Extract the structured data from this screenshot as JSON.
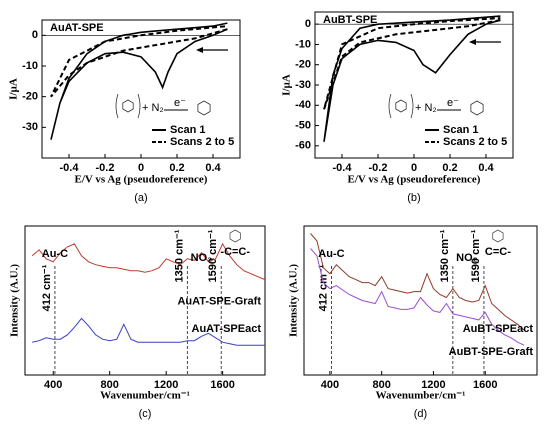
{
  "chart_data": [
    {
      "type": "line",
      "label": "(a)",
      "title": "AuAT-SPE",
      "x_label": "E/V vs Ag (pseudoreference)",
      "y_label": "I/µA",
      "xlim": [
        -0.55,
        0.55
      ],
      "xticks": [
        -0.4,
        -0.2,
        0,
        0.2,
        0.4
      ],
      "ylim": [
        -40,
        5
      ],
      "yticks": [
        0,
        -10,
        -20,
        -30
      ],
      "legend": "lower right",
      "annotations": [
        "+ N₂",
        "e⁻"
      ],
      "series": [
        {
          "name": "Scan 1",
          "color": "#000000",
          "dash": false,
          "x": [
            0.48,
            0.4,
            0.3,
            0.2,
            0.15,
            0.12,
            0.08,
            0.0,
            -0.1,
            -0.2,
            -0.3,
            -0.4,
            -0.45,
            -0.5,
            -0.45,
            -0.4,
            -0.3,
            -0.2,
            -0.1,
            0,
            0.1,
            0.2,
            0.3,
            0.4,
            0.48
          ],
          "values": [
            2,
            0,
            -2,
            -6,
            -12,
            -17,
            -12,
            -7,
            -5.5,
            -6,
            -9,
            -15,
            -22,
            -34,
            -22,
            -14,
            -6,
            -2,
            0,
            1,
            1.5,
            2,
            2.5,
            3,
            4
          ]
        },
        {
          "name": "Scans 2 to 5",
          "color": "#000000",
          "dash": true,
          "x": [
            0.48,
            0.3,
            0.1,
            -0.1,
            -0.3,
            -0.4,
            -0.5,
            -0.4,
            -0.2,
            0,
            0.2,
            0.48
          ],
          "values": [
            2,
            -1,
            -3,
            -5,
            -9,
            -13,
            -20,
            -8,
            -2,
            0,
            1.5,
            3
          ]
        }
      ]
    },
    {
      "type": "line",
      "label": "(b)",
      "title": "AuBT-SPE",
      "x_label": "E/V vs Ag (pseudoreference)",
      "y_label": "I/µA",
      "xlim": [
        -0.55,
        0.55
      ],
      "xticks": [
        -0.4,
        -0.2,
        0,
        0.2,
        0.4
      ],
      "ylim": [
        -66,
        6
      ],
      "yticks": [
        0,
        -10,
        -20,
        -30,
        -40,
        -50,
        -60
      ],
      "legend": "lower right",
      "annotations": [
        "+ N₂",
        "e⁻"
      ],
      "series": [
        {
          "name": "Scan 1",
          "color": "#000000",
          "dash": false,
          "x": [
            0.48,
            0.4,
            0.3,
            0.2,
            0.12,
            0.05,
            0,
            -0.1,
            -0.2,
            -0.3,
            -0.4,
            -0.45,
            -0.5,
            -0.45,
            -0.4,
            -0.3,
            -0.2,
            0,
            0.2,
            0.48
          ],
          "values": [
            2,
            0,
            -5,
            -15,
            -24,
            -20,
            -13,
            -9,
            -8,
            -10,
            -17,
            -30,
            -58,
            -25,
            -12,
            -2,
            0,
            1,
            2,
            4
          ]
        },
        {
          "name": "Scans 2 to 5",
          "color": "#000000",
          "dash": true,
          "x": [
            0.48,
            0.3,
            0.1,
            -0.1,
            -0.3,
            -0.4,
            -0.5,
            -0.4,
            -0.2,
            0,
            0.2,
            0.48
          ],
          "values": [
            2,
            -1,
            -3,
            -5,
            -9,
            -16,
            -42,
            -10,
            -2,
            0,
            1.5,
            3
          ]
        }
      ]
    },
    {
      "type": "raman",
      "label": "(c)",
      "x_label": "Wavenumber/cm⁻¹",
      "y_label": "Intensity (A.U.)",
      "xlim": [
        200,
        1900
      ],
      "xticks": [
        400,
        800,
        1200,
        1600
      ],
      "ylim": [
        0,
        100
      ],
      "markers": [
        412,
        1350,
        1590
      ],
      "marker_labels": [
        "412 cm⁻¹",
        "1350 cm⁻¹",
        "1590 cm⁻¹"
      ],
      "annotations": [
        "Au-C",
        "NO₂",
        "-C=C-"
      ],
      "x": [
        250,
        300,
        350,
        400,
        450,
        500,
        550,
        600,
        650,
        700,
        750,
        800,
        850,
        900,
        950,
        1000,
        1050,
        1100,
        1150,
        1200,
        1250,
        1300,
        1350,
        1400,
        1450,
        1500,
        1550,
        1600,
        1650,
        1700,
        1750,
        1800,
        1850,
        1900
      ],
      "series": [
        {
          "name": "AuAT-SPE-Graft",
          "color": "#c0392b",
          "values": [
            80,
            84,
            78,
            76,
            82,
            86,
            88,
            80,
            76,
            74,
            73,
            72,
            72,
            71,
            70,
            70,
            69,
            70,
            72,
            78,
            76,
            74,
            78,
            77,
            82,
            76,
            78,
            88,
            80,
            74,
            70,
            68,
            66,
            64
          ]
        },
        {
          "name": "AuAT-SPEact",
          "color": "#3a3fc4",
          "values": [
            22,
            23,
            25,
            24,
            24,
            27,
            32,
            38,
            33,
            27,
            24,
            23,
            24,
            34,
            24,
            22,
            22,
            22,
            22,
            22,
            22,
            22,
            23,
            23,
            26,
            28,
            25,
            22,
            21,
            20,
            20,
            20,
            20,
            20
          ]
        }
      ]
    },
    {
      "type": "raman",
      "label": "(d)",
      "x_label": "Wavenumber/cm⁻¹",
      "y_label": "Intensity (A.U.)",
      "xlim": [
        200,
        2000
      ],
      "xticks": [
        400,
        800,
        1200,
        1600
      ],
      "ylim": [
        0,
        100
      ],
      "markers": [
        412,
        1350,
        1590
      ],
      "marker_labels": [
        "412 cm⁻¹",
        "1350 cm⁻¹",
        "1590 cm⁻¹"
      ],
      "annotations": [
        "Au-C",
        "NO₂",
        "C=C-"
      ],
      "x": [
        250,
        300,
        350,
        400,
        450,
        500,
        550,
        600,
        650,
        700,
        750,
        800,
        850,
        900,
        950,
        1000,
        1050,
        1100,
        1150,
        1200,
        1250,
        1300,
        1350,
        1400,
        1450,
        1500,
        1550,
        1600,
        1650,
        1700,
        1750,
        1800,
        1850,
        1900
      ],
      "series": [
        {
          "name": "AuBT-SPE-Graft",
          "color": "#8e3b2a",
          "values": [
            95,
            90,
            72,
            68,
            74,
            70,
            66,
            64,
            62,
            62,
            60,
            66,
            58,
            57,
            56,
            55,
            56,
            56,
            68,
            58,
            54,
            52,
            58,
            52,
            50,
            49,
            50,
            60,
            48,
            44,
            40,
            37,
            34,
            30
          ]
        },
        {
          "name": "AuBT-SPEact",
          "color": "#9b4fd0",
          "values": [
            85,
            80,
            62,
            58,
            60,
            57,
            54,
            52,
            50,
            49,
            48,
            56,
            46,
            45,
            44,
            44,
            45,
            52,
            47,
            43,
            42,
            48,
            41,
            40,
            39,
            38,
            37,
            42,
            34,
            30,
            27,
            25,
            22,
            20
          ]
        }
      ]
    }
  ]
}
